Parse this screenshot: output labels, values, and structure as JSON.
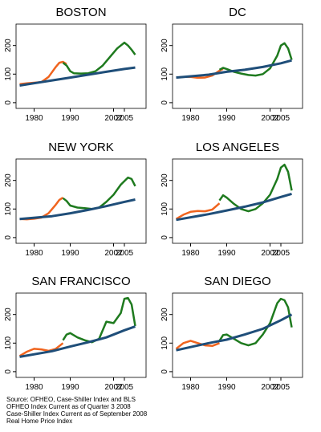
{
  "chart_data": [
    {
      "type": "line",
      "title": "BOSTON",
      "xlim": [
        1975,
        2011
      ],
      "ylim": [
        -20,
        275
      ],
      "xticks": [
        1980,
        1990,
        2002,
        2005
      ],
      "yticks": [
        0,
        100,
        200
      ],
      "series": [
        {
          "color": "#f0641e",
          "x": [
            1976,
            1978,
            1980,
            1982,
            1984,
            1986,
            1987,
            1988,
            1989
          ],
          "values": [
            65,
            68,
            70,
            72,
            90,
            125,
            140,
            143,
            135
          ]
        },
        {
          "color": "#1e7a1e",
          "x": [
            1988,
            1989,
            1990,
            1991,
            1993,
            1995,
            1997,
            1999,
            2001,
            2003,
            2004,
            2005,
            2006,
            2007,
            2008
          ],
          "values": [
            140,
            130,
            110,
            103,
            102,
            103,
            110,
            130,
            160,
            190,
            200,
            210,
            200,
            185,
            168
          ]
        },
        {
          "color": "#1f4e79",
          "x": [
            1976,
            1980,
            1985,
            1990,
            1995,
            2000,
            2005,
            2008
          ],
          "values": [
            60,
            68,
            78,
            88,
            98,
            108,
            118,
            123
          ]
        }
      ]
    },
    {
      "type": "line",
      "title": "DC",
      "xlim": [
        1975,
        2011
      ],
      "ylim": [
        -20,
        275
      ],
      "xticks": [
        1980,
        1990,
        2002,
        2005
      ],
      "yticks": [
        0,
        100,
        200
      ],
      "series": [
        {
          "color": "#f0641e",
          "x": [
            1976,
            1978,
            1980,
            1982,
            1984,
            1986,
            1988,
            1989
          ],
          "values": [
            88,
            90,
            90,
            87,
            88,
            95,
            112,
            118
          ]
        },
        {
          "color": "#1e7a1e",
          "x": [
            1988,
            1989,
            1990,
            1992,
            1994,
            1996,
            1998,
            2000,
            2002,
            2004,
            2005,
            2006,
            2007,
            2008
          ],
          "values": [
            115,
            122,
            118,
            108,
            102,
            97,
            95,
            100,
            120,
            165,
            200,
            208,
            190,
            150
          ]
        },
        {
          "color": "#1f4e79",
          "x": [
            1976,
            1985,
            1990,
            1995,
            2000,
            2005,
            2008
          ],
          "values": [
            88,
            98,
            108,
            115,
            125,
            138,
            148
          ]
        }
      ]
    },
    {
      "type": "line",
      "title": "NEW YORK",
      "xlim": [
        1975,
        2011
      ],
      "ylim": [
        -20,
        275
      ],
      "xticks": [
        1980,
        1990,
        2002,
        2005
      ],
      "yticks": [
        0,
        100,
        200
      ],
      "series": [
        {
          "color": "#f0641e",
          "x": [
            1976,
            1978,
            1980,
            1982,
            1984,
            1986,
            1987,
            1988
          ],
          "values": [
            65,
            64,
            66,
            70,
            85,
            115,
            132,
            140
          ]
        },
        {
          "color": "#1e7a1e",
          "x": [
            1988,
            1989,
            1990,
            1992,
            1994,
            1996,
            1998,
            2000,
            2002,
            2004,
            2006,
            2007,
            2008
          ],
          "values": [
            138,
            128,
            112,
            105,
            103,
            100,
            105,
            125,
            150,
            185,
            210,
            205,
            180
          ]
        },
        {
          "color": "#1f4e79",
          "x": [
            1976,
            1985,
            1990,
            1995,
            2000,
            2005,
            2008
          ],
          "values": [
            65,
            75,
            85,
            97,
            110,
            125,
            133
          ]
        }
      ]
    },
    {
      "type": "line",
      "title": "LOS ANGELES",
      "xlim": [
        1975,
        2011
      ],
      "ylim": [
        -20,
        275
      ],
      "xticks": [
        1980,
        1990,
        2002,
        2005
      ],
      "yticks": [
        0,
        100,
        200
      ],
      "series": [
        {
          "color": "#f0641e",
          "x": [
            1976,
            1978,
            1980,
            1982,
            1984,
            1986,
            1988
          ],
          "values": [
            65,
            80,
            90,
            93,
            92,
            98,
            120
          ]
        },
        {
          "color": "#1e7a1e",
          "x": [
            1988,
            1989,
            1990,
            1992,
            1994,
            1996,
            1998,
            2000,
            2002,
            2004,
            2005,
            2006,
            2007,
            2008
          ],
          "values": [
            130,
            148,
            140,
            118,
            100,
            92,
            100,
            120,
            150,
            205,
            245,
            255,
            230,
            165
          ]
        },
        {
          "color": "#1f4e79",
          "x": [
            1976,
            1985,
            1990,
            1995,
            2000,
            2005,
            2008
          ],
          "values": [
            62,
            82,
            95,
            108,
            123,
            142,
            153
          ]
        }
      ]
    },
    {
      "type": "line",
      "title": "SAN FRANCISCO",
      "xlim": [
        1975,
        2011
      ],
      "ylim": [
        -20,
        275
      ],
      "xticks": [
        1980,
        1990,
        2002,
        2005
      ],
      "yticks": [
        0,
        100,
        200
      ],
      "series": [
        {
          "color": "#f0641e",
          "x": [
            1976,
            1978,
            1980,
            1982,
            1984,
            1986,
            1988
          ],
          "values": [
            55,
            70,
            80,
            78,
            73,
            80,
            100
          ]
        },
        {
          "color": "#1e7a1e",
          "x": [
            1988,
            1989,
            1990,
            1992,
            1994,
            1996,
            1998,
            2000,
            2002,
            2004,
            2005,
            2006,
            2007,
            2008
          ],
          "values": [
            110,
            130,
            135,
            120,
            110,
            103,
            115,
            175,
            170,
            205,
            255,
            258,
            235,
            160
          ]
        },
        {
          "color": "#1f4e79",
          "x": [
            1976,
            1985,
            1990,
            1995,
            2000,
            2005,
            2008
          ],
          "values": [
            52,
            72,
            88,
            103,
            120,
            145,
            158
          ]
        }
      ]
    },
    {
      "type": "line",
      "title": "SAN DIEGO",
      "xlim": [
        1975,
        2011
      ],
      "ylim": [
        -20,
        275
      ],
      "xticks": [
        1980,
        1990,
        2002,
        2005
      ],
      "yticks": [
        0,
        100,
        200
      ],
      "series": [
        {
          "color": "#f0641e",
          "x": [
            1976,
            1978,
            1980,
            1982,
            1984,
            1986,
            1988
          ],
          "values": [
            80,
            100,
            108,
            100,
            92,
            90,
            100
          ]
        },
        {
          "color": "#1e7a1e",
          "x": [
            1988,
            1989,
            1990,
            1992,
            1994,
            1996,
            1998,
            2000,
            2002,
            2004,
            2005,
            2006,
            2007,
            2008
          ],
          "values": [
            108,
            128,
            130,
            115,
            100,
            92,
            100,
            130,
            170,
            240,
            255,
            250,
            225,
            155
          ]
        },
        {
          "color": "#1f4e79",
          "x": [
            1976,
            1985,
            1990,
            1995,
            2000,
            2005,
            2008
          ],
          "values": [
            75,
            100,
            112,
            130,
            150,
            180,
            200
          ]
        }
      ]
    }
  ],
  "source": [
    "Source: OFHEO, Case-Shiller Index and BLS",
    "OFHEO Index Current as of Quarter 3 2008",
    "Case-Shiller Index Current as of September 2008",
    "Real Home Price Index"
  ]
}
